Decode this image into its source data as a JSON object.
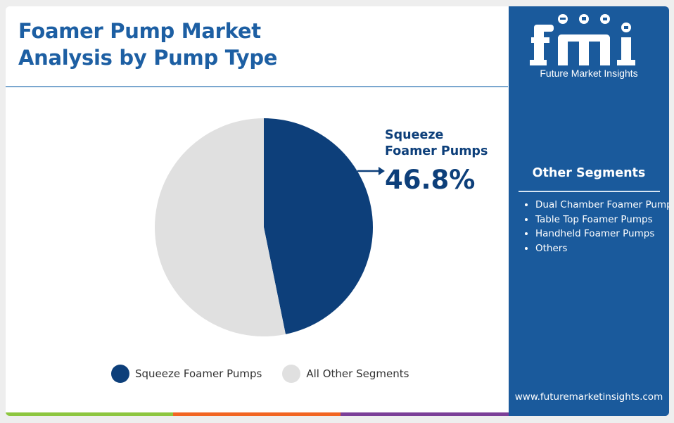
{
  "title_line1": "Foamer Pump Market",
  "title_line2": "Analysis by Pump Type",
  "chart_data": {
    "type": "pie",
    "title": "Foamer Pump Market Analysis by Pump Type",
    "slices": [
      {
        "label": "Squeeze Foamer Pumps",
        "value": 46.8,
        "color": "#0d3f7a"
      },
      {
        "label": "All Other Segments",
        "value": 53.2,
        "color": "#e0e0e0"
      }
    ],
    "legend_position": "bottom",
    "callout": {
      "label_line1": "Squeeze",
      "label_line2": "Foamer Pumps",
      "value_text": "46.8%"
    }
  },
  "brand": {
    "logo_text": "fmi",
    "logo_caption": "Future Market Insights",
    "site_url": "www.futuremarketinsights.com"
  },
  "side_panel": {
    "heading": "Other Segments",
    "items": [
      "Dual Chamber Foamer Pumps",
      "Table Top Foamer Pumps",
      "Handheld Foamer Pumps",
      "Others"
    ]
  },
  "colors": {
    "title": "#1d5fa3",
    "primary_slice": "#0d3f7a",
    "other_slice": "#e0e0e0",
    "side_panel_bg": "#1a5a9c",
    "bottom_bar": [
      "#8dc63f",
      "#f26522",
      "#7b3f98",
      "#1a5a9c"
    ]
  }
}
